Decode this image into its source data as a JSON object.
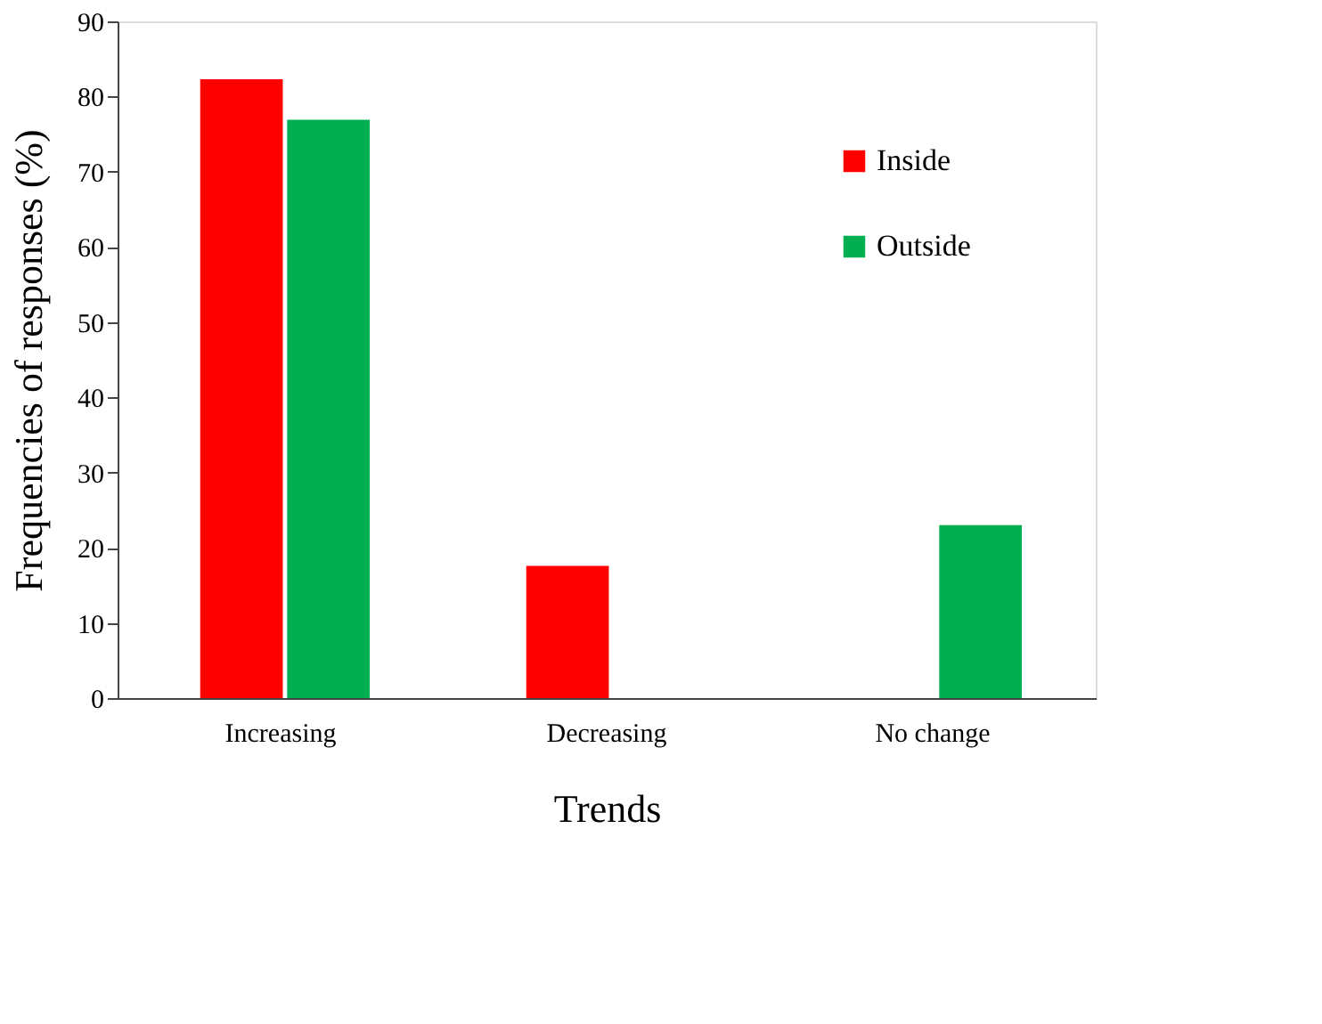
{
  "chart_data": {
    "type": "bar",
    "xlabel": "Trends",
    "ylabel": "Frequencies of responses (%)",
    "categories": [
      "Increasing",
      "Decreasing",
      "No change"
    ],
    "series": [
      {
        "name": "Inside",
        "color": "#ff0000",
        "values": [
          82.3,
          17.6,
          0
        ]
      },
      {
        "name": "Outside",
        "color": "#00b050",
        "values": [
          76.9,
          0,
          23
        ]
      }
    ],
    "ylim": [
      0,
      90
    ],
    "yticks": [
      0,
      10,
      20,
      30,
      40,
      50,
      60,
      70,
      80,
      90
    ],
    "grid": false,
    "legend": "top right"
  }
}
